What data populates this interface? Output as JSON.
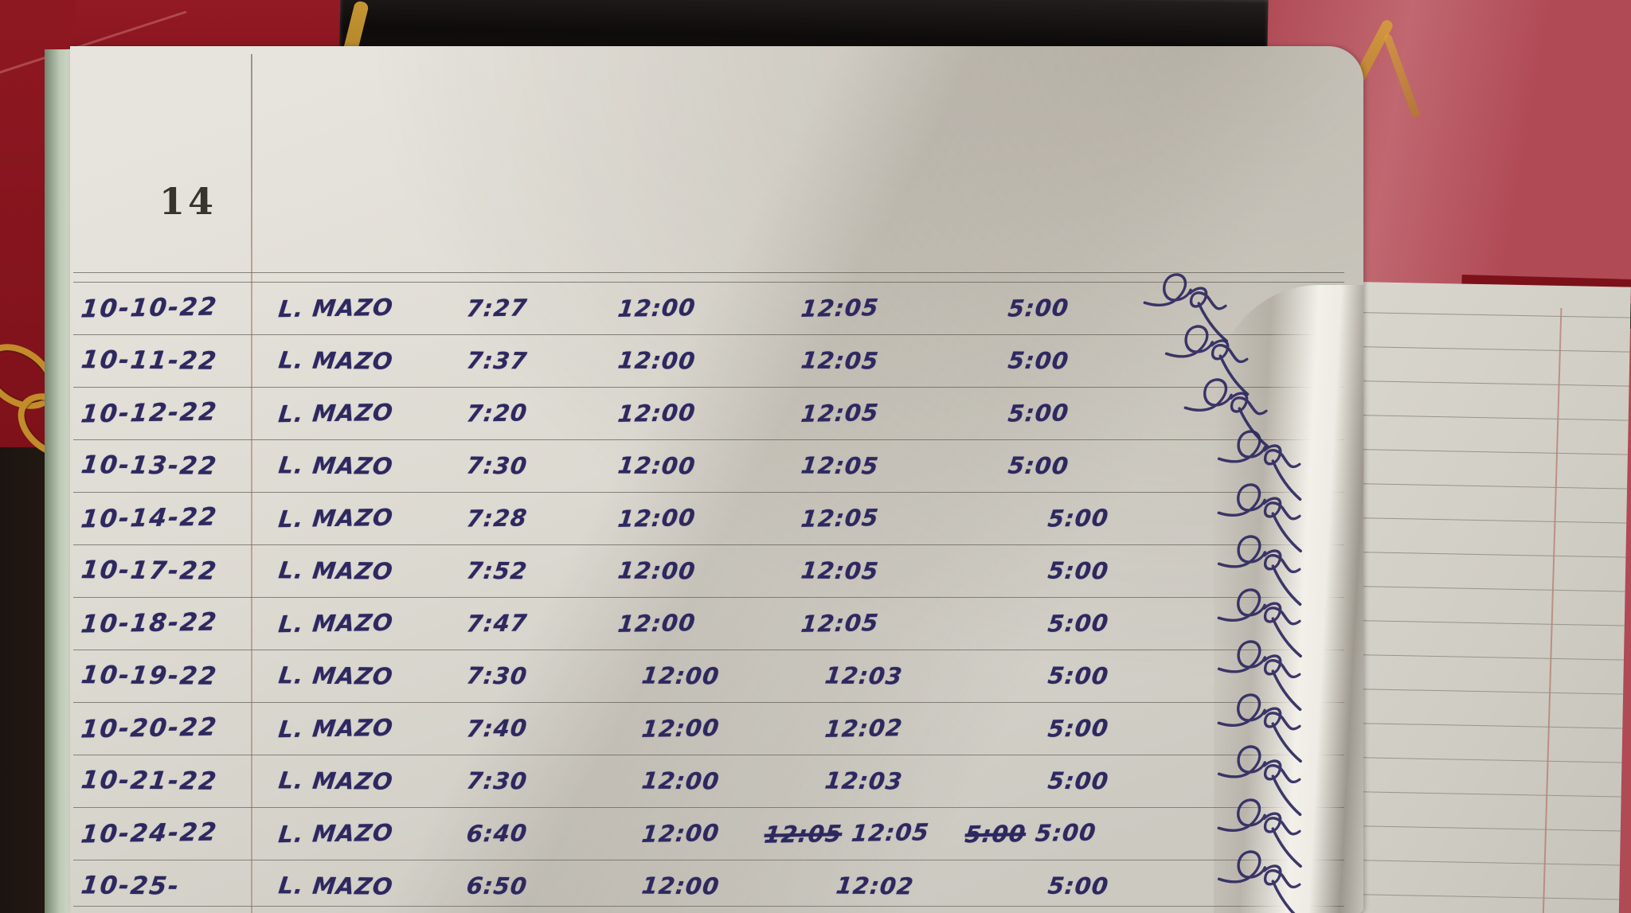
{
  "page": {
    "number": "14"
  },
  "logbook": {
    "description": "handwritten attendance time log, October 2022",
    "rows": [
      {
        "date": "10-10-22",
        "name": "L. MAZO",
        "time_in": "7:27",
        "lunch_out": "12:00",
        "lunch_in_struck": "",
        "lunch_in": "12:05",
        "time_out_struck": "",
        "time_out": "5:00"
      },
      {
        "date": "10-11-22",
        "name": "L. MAZO",
        "time_in": "7:37",
        "lunch_out": "12:00",
        "lunch_in_struck": "",
        "lunch_in": "12:05",
        "time_out_struck": "",
        "time_out": "5:00"
      },
      {
        "date": "10-12-22",
        "name": "L. MAZO",
        "time_in": "7:20",
        "lunch_out": "12:00",
        "lunch_in_struck": "",
        "lunch_in": "12:05",
        "time_out_struck": "",
        "time_out": "5:00"
      },
      {
        "date": "10-13-22",
        "name": "L. MAZO",
        "time_in": "7:30",
        "lunch_out": "12:00",
        "lunch_in_struck": "",
        "lunch_in": "12:05",
        "time_out_struck": "",
        "time_out": "5:00"
      },
      {
        "date": "10-14-22",
        "name": "L. MAZO",
        "time_in": "7:28",
        "lunch_out": "12:00",
        "lunch_in_struck": "",
        "lunch_in": "12:05",
        "time_out_struck": "",
        "time_out": "5:00"
      },
      {
        "date": "10-17-22",
        "name": "L. MAZO",
        "time_in": "7:52",
        "lunch_out": "12:00",
        "lunch_in_struck": "",
        "lunch_in": "12:05",
        "time_out_struck": "",
        "time_out": "5:00"
      },
      {
        "date": "10-18-22",
        "name": "L. MAZO",
        "time_in": "7:47",
        "lunch_out": "12:00",
        "lunch_in_struck": "",
        "lunch_in": "12:05",
        "time_out_struck": "",
        "time_out": "5:00"
      },
      {
        "date": "10-19-22",
        "name": "L. MAZO",
        "time_in": "7:30",
        "lunch_out": "12:00",
        "lunch_in_struck": "",
        "lunch_in": "12:03",
        "time_out_struck": "",
        "time_out": "5:00"
      },
      {
        "date": "10-20-22",
        "name": "L. MAZO",
        "time_in": "7:40",
        "lunch_out": "12:00",
        "lunch_in_struck": "",
        "lunch_in": "12:02",
        "time_out_struck": "",
        "time_out": "5:00"
      },
      {
        "date": "10-21-22",
        "name": "L. MAZO",
        "time_in": "7:30",
        "lunch_out": "12:00",
        "lunch_in_struck": "",
        "lunch_in": "12:03",
        "time_out_struck": "",
        "time_out": "5:00"
      },
      {
        "date": "10-24-22",
        "name": "L. MAZO",
        "time_in": "6:40",
        "lunch_out": "12:00",
        "lunch_in_struck": "12:05",
        "lunch_in": "12:05",
        "time_out_struck": "5:00",
        "time_out": "5:00"
      },
      {
        "date": "10-25-",
        "name": "L. MAZO",
        "time_in": "6:50",
        "lunch_out": "12:00",
        "lunch_in_struck": "",
        "lunch_in": "12:02",
        "time_out_struck": "",
        "time_out": "5:00"
      }
    ]
  },
  "icons": {
    "signature": "loop-scribble"
  },
  "colors": {
    "table_red": "#b04a55",
    "cover_red": "#8e1822",
    "spine_black": "#121010",
    "page_white": "#dddad2",
    "ruled_line": "#84817a",
    "margin_red": "#a85e54",
    "ink_blue": "#2e2860",
    "gold": "#c28c2a"
  }
}
